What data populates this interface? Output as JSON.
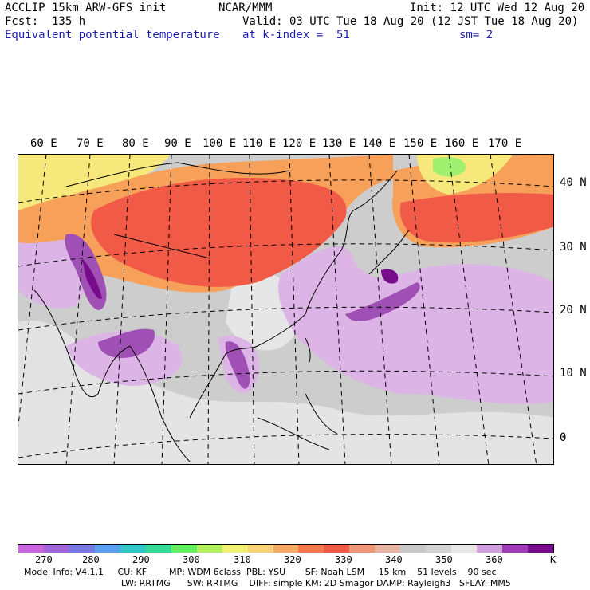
{
  "header": {
    "model": "ACCLIP 15km ARW-GFS init",
    "fcst": "Fcst:  135 h",
    "variable": "Equivalent potential temperature",
    "org": "NCAR/MMM",
    "valid": "Valid: 03 UTC Tue 18 Aug 20 (12 JST Tue 18 Aug 20)",
    "init": "Init: 12 UTC Wed 12 Aug 20",
    "level": "at k-index =  51",
    "smooth": "sm= 2"
  },
  "map": {
    "lon_labels": [
      "60 E",
      "70 E",
      "80 E",
      "90 E",
      "100 E",
      "110 E",
      "120 E",
      "130 E",
      "140 E",
      "150 E",
      "160 E",
      "170 E"
    ],
    "lat_labels": [
      "40 N",
      "30 N",
      "20 N",
      "10 N",
      "0"
    ],
    "colors": {
      "warm_yellow": "#f6e87a",
      "orange": "#f6a05a",
      "red": "#f05a46",
      "light_gray": "#e6e6e6",
      "mid_gray": "#cccccc",
      "light_purple": "#dcb4e6",
      "purple": "#a050b4",
      "dark_purple": "#780a8c",
      "green": "#a0f070"
    }
  },
  "colorbar": {
    "unit": "K",
    "tick_labels": [
      "270",
      "280",
      "290",
      "300",
      "310",
      "320",
      "330",
      "340",
      "350",
      "360"
    ],
    "colors": [
      "#c864dc",
      "#a064dc",
      "#7878e6",
      "#5aa0f0",
      "#32c8c8",
      "#32dc96",
      "#64f064",
      "#b4f064",
      "#f0f078",
      "#f6d278",
      "#f6aa64",
      "#f67850",
      "#f05a46",
      "#f09678",
      "#e6b4a0",
      "#c8c8c8",
      "#d2d2d2",
      "#e6e6e6",
      "#d2a0dc",
      "#a03cb4",
      "#780a8c"
    ]
  },
  "footer": {
    "line1": "Model Info: V4.1.1     CU: KF        MP: WDM 6class  PBL: YSU       SF: Noah LSM     15 km    51 levels    90 sec",
    "line2": "LW: RRTMG      SW: RRTMG    DIFF: simple KM: 2D Smagor DAMP: Rayleigh3   SFLAY: MM5"
  }
}
